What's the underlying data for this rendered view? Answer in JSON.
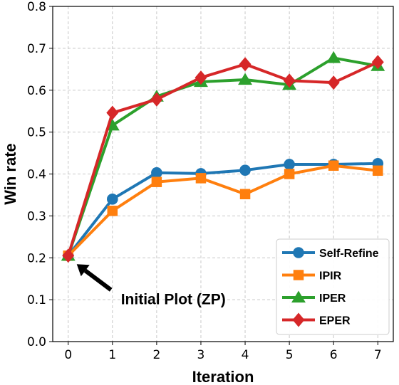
{
  "chart_data": {
    "type": "line",
    "xlabel": "Iteration",
    "ylabel": "Win rate",
    "x": [
      0,
      1,
      2,
      3,
      4,
      5,
      6,
      7
    ],
    "xlim": [
      -0.35,
      7.35
    ],
    "ylim": [
      0,
      0.8
    ],
    "yticks": [
      "0.0",
      "0.1",
      "0.2",
      "0.3",
      "0.4",
      "0.5",
      "0.6",
      "0.7",
      "0.8"
    ],
    "xticks": [
      "0",
      "1",
      "2",
      "3",
      "4",
      "5",
      "6",
      "7"
    ],
    "grid": true,
    "legend_position": "bottom-right",
    "series": [
      {
        "name": "Self-Refine",
        "color": "#1f77b4",
        "marker": "circle",
        "values": [
          0.205,
          0.34,
          0.403,
          0.401,
          0.409,
          0.423,
          0.423,
          0.425
        ]
      },
      {
        "name": "IPIR",
        "color": "#ff7f0e",
        "marker": "square",
        "values": [
          0.205,
          0.312,
          0.381,
          0.39,
          0.352,
          0.4,
          0.42,
          0.408
        ]
      },
      {
        "name": "IPER",
        "color": "#2ca02c",
        "marker": "triangle",
        "values": [
          0.205,
          0.516,
          0.585,
          0.62,
          0.625,
          0.613,
          0.677,
          0.658
        ]
      },
      {
        "name": "EPER",
        "color": "#d62728",
        "marker": "diamond",
        "values": [
          0.205,
          0.546,
          0.578,
          0.63,
          0.662,
          0.623,
          0.618,
          0.667
        ]
      }
    ],
    "annotation": {
      "text": "Initial Plot (ZP)",
      "x": 0,
      "y": 0.205
    }
  }
}
